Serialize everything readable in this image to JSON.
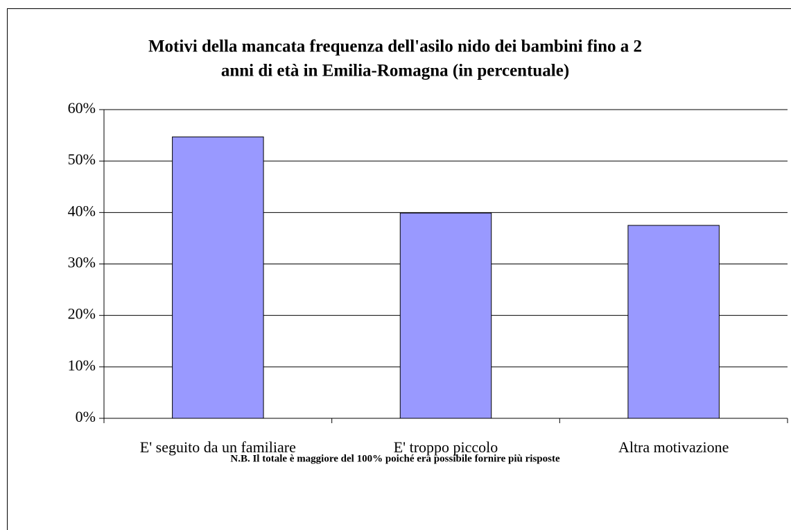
{
  "chart_data": {
    "type": "bar",
    "title": [
      "Motivi della mancata frequenza dell'asilo nido dei bambini fino a 2",
      "anni di età in Emilia-Romagna (in percentuale)"
    ],
    "categories": [
      "E' seguito da un familiare",
      "E' troppo piccolo",
      "Altra motivazione"
    ],
    "values": [
      54.7,
      39.9,
      37.5
    ],
    "color": "#9999ff",
    "ylim": [
      0,
      60
    ],
    "yticks": [
      {
        "value": 0,
        "label": "0%"
      },
      {
        "value": 10,
        "label": "10%"
      },
      {
        "value": 20,
        "label": "20%"
      },
      {
        "value": 30,
        "label": "30%"
      },
      {
        "value": 40,
        "label": "40%"
      },
      {
        "value": 50,
        "label": "50%"
      },
      {
        "value": 60,
        "label": "60%"
      }
    ],
    "grid": true,
    "note": "N.B. Il totale è maggiore del 100% poiché era possibile fornire più risposte"
  }
}
